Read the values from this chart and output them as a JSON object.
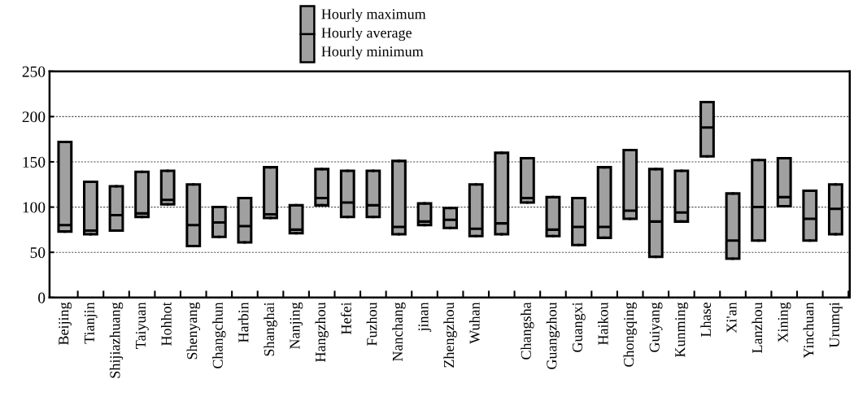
{
  "chart_data": {
    "type": "box",
    "categories": [
      "Beijing",
      "Tianjin",
      "Shijiazhuang",
      "Taiyuan",
      "Hohhot",
      "Shenyang",
      "Changchun",
      "Harbin",
      "Shanghai",
      "Nanjing",
      "Hangzhou",
      "Hefei",
      "Fuzhou",
      "Nanchang",
      "jinan",
      "Zhengzhou",
      "Wuhan",
      null,
      "Changsha",
      "Guangzhou",
      "Guangxi",
      "Haikou",
      "Chongqing",
      "Guiyang",
      "Kunming",
      "Lhase",
      "Xi'an",
      "Lanzhou",
      "Xining",
      "Yinchuan",
      "Urumqi"
    ],
    "annotations": [
      "Hourly maximum",
      "Hourly average",
      "Hourly minimum"
    ],
    "ylim": [
      0,
      250
    ],
    "yticks": [
      0,
      50,
      100,
      150,
      200,
      250
    ],
    "grid": "y",
    "series": [
      {
        "color": "#a0a0a0",
        "boxes": [
          {
            "low": 73,
            "q1": 73,
            "median": 80,
            "q3": 172,
            "high": 172
          },
          {
            "low": 70,
            "q1": 70,
            "median": 74,
            "q3": 128,
            "high": 128
          },
          {
            "low": 74,
            "q1": 74,
            "median": 91,
            "q3": 123,
            "high": 123
          },
          {
            "low": 89,
            "q1": 89,
            "median": 93,
            "q3": 139,
            "high": 139
          },
          {
            "low": 103,
            "q1": 103,
            "median": 108,
            "q3": 140,
            "high": 140
          },
          {
            "low": 57,
            "q1": 57,
            "median": 80,
            "q3": 125,
            "high": 125
          },
          {
            "low": 67,
            "q1": 67,
            "median": 83,
            "q3": 100,
            "high": 100
          },
          {
            "low": 61,
            "q1": 61,
            "median": 79,
            "q3": 110,
            "high": 110
          },
          {
            "low": 88,
            "q1": 88,
            "median": 92,
            "q3": 144,
            "high": 144
          },
          {
            "low": 71,
            "q1": 71,
            "median": 75,
            "q3": 102,
            "high": 102
          },
          {
            "low": 102,
            "q1": 102,
            "median": 110,
            "q3": 142,
            "high": 142
          },
          {
            "low": 89,
            "q1": 89,
            "median": 105,
            "q3": 140,
            "high": 140
          },
          {
            "low": 89,
            "q1": 89,
            "median": 102,
            "q3": 140,
            "high": 140
          },
          {
            "low": 70,
            "q1": 70,
            "median": 78,
            "q3": 151,
            "high": 151
          },
          {
            "low": 80,
            "q1": 80,
            "median": 84,
            "q3": 104,
            "high": 104
          },
          {
            "low": 77,
            "q1": 77,
            "median": 86,
            "q3": 99,
            "high": 99
          },
          {
            "low": 68,
            "q1": 68,
            "median": 76,
            "q3": 125,
            "high": 125
          },
          {
            "low": 70,
            "q1": 70,
            "median": 82,
            "q3": 160,
            "high": 160
          },
          {
            "low": 105,
            "q1": 105,
            "median": 110,
            "q3": 154,
            "high": 154
          },
          {
            "low": 68,
            "q1": 68,
            "median": 75,
            "q3": 111,
            "high": 111
          },
          {
            "low": 58,
            "q1": 58,
            "median": 78,
            "q3": 110,
            "high": 110
          },
          {
            "low": 66,
            "q1": 66,
            "median": 78,
            "q3": 144,
            "high": 144
          },
          {
            "low": 87,
            "q1": 87,
            "median": 96,
            "q3": 163,
            "high": 163
          },
          {
            "low": 45,
            "q1": 45,
            "median": 84,
            "q3": 142,
            "high": 142
          },
          {
            "low": 84,
            "q1": 84,
            "median": 94,
            "q3": 140,
            "high": 140
          },
          {
            "low": 156,
            "q1": 156,
            "median": 188,
            "q3": 216,
            "high": 216
          },
          {
            "low": 43,
            "q1": 43,
            "median": 63,
            "q3": 115,
            "high": 115
          },
          {
            "low": 63,
            "q1": 63,
            "median": 100,
            "q3": 152,
            "high": 152
          },
          {
            "low": 101,
            "q1": 101,
            "median": 111,
            "q3": 154,
            "high": 154
          },
          {
            "low": 63,
            "q1": 63,
            "median": 87,
            "q3": 118,
            "high": 118
          },
          {
            "low": 70,
            "q1": 70,
            "median": 98,
            "q3": 125,
            "high": 125
          }
        ]
      }
    ]
  }
}
